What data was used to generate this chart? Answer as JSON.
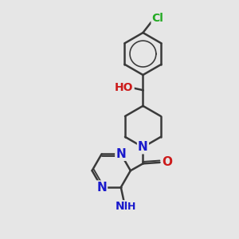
{
  "background_color": "#e6e6e6",
  "bond_color": "#3a3a3a",
  "bond_width": 1.8,
  "atom_colors": {
    "C": "#3a3a3a",
    "N": "#1a1acc",
    "O": "#cc1a1a",
    "Cl": "#22aa22",
    "H": "#1a1acc"
  },
  "font_size_large": 11,
  "font_size_med": 10,
  "font_size_small": 9
}
